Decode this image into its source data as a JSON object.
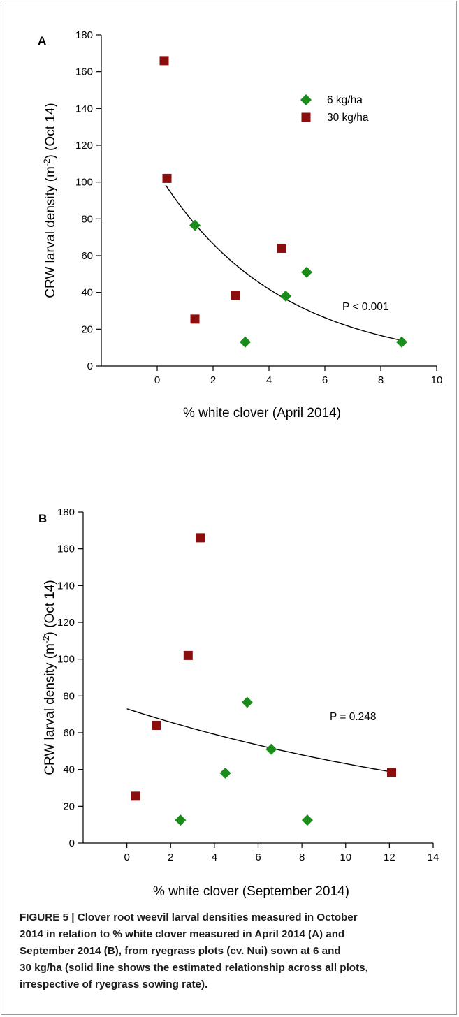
{
  "chart_data": [
    {
      "type": "scatter",
      "panel": "A",
      "xlabel": "% white clover (April 2014)",
      "ylabel_main": "CRW larval density (m",
      "ylabel_sup": "-2",
      "ylabel_end": ") (Oct 14)",
      "xlim": [
        -2,
        10
      ],
      "ylim": [
        0,
        180
      ],
      "xticks": [
        0,
        2,
        4,
        6,
        8,
        10
      ],
      "yticks": [
        0,
        20,
        40,
        60,
        80,
        100,
        120,
        140,
        160,
        180
      ],
      "legend_placement": "top-right",
      "annotation": "P < 0.001",
      "series": [
        {
          "name": "6 kg/ha",
          "marker": "diamond",
          "color": "#1a8c1a",
          "points": [
            [
              1.35,
              76.5
            ],
            [
              3.15,
              13
            ],
            [
              4.6,
              38
            ],
            [
              5.35,
              51
            ],
            [
              8.75,
              13
            ]
          ]
        },
        {
          "name": "30 kg/ha",
          "marker": "square",
          "color": "#8b0e0e",
          "points": [
            [
              0.25,
              166
            ],
            [
              0.35,
              102
            ],
            [
              1.35,
              25.5
            ],
            [
              2.8,
              38.5
            ],
            [
              4.45,
              64
            ]
          ]
        }
      ],
      "fit": {
        "type": "exponential decay",
        "x_range": [
          0.3,
          8.75
        ],
        "a": 105.5,
        "b": -0.2316
      }
    },
    {
      "type": "scatter",
      "panel": "B",
      "xlabel": "% white clover (September 2014)",
      "ylabel_main": "CRW larval density (m",
      "ylabel_sup": "-2",
      "ylabel_end": ") (Oct 14)",
      "xlim": [
        -2,
        14
      ],
      "ylim": [
        0,
        180
      ],
      "xticks": [
        0,
        2,
        4,
        6,
        8,
        10,
        12,
        14
      ],
      "yticks": [
        0,
        20,
        40,
        60,
        80,
        100,
        120,
        140,
        160,
        180
      ],
      "annotation": "P = 0.248",
      "series": [
        {
          "name": "6 kg/ha",
          "marker": "diamond",
          "color": "#1a8c1a",
          "points": [
            [
              2.45,
              12.5
            ],
            [
              4.5,
              38
            ],
            [
              5.5,
              76.5
            ],
            [
              6.6,
              51
            ],
            [
              8.25,
              12.5
            ]
          ]
        },
        {
          "name": "30 kg/ha",
          "marker": "square",
          "color": "#8b0e0e",
          "points": [
            [
              0.4,
              25.5
            ],
            [
              1.35,
              64
            ],
            [
              2.8,
              102
            ],
            [
              3.35,
              166
            ],
            [
              12.1,
              38.5
            ]
          ]
        }
      ],
      "fit": {
        "type": "exponential decay",
        "x_range": [
          0.0,
          12.1
        ],
        "a": 73,
        "b": -0.0525
      }
    }
  ],
  "caption": {
    "lines": [
      "FIGURE 5 | Clover root weevil larval densities measured in October",
      "2014 in relation to % white clover measured in April 2014 (A) and",
      "September 2014 (B), from ryegrass plots (cv. Nui) sown at 6 and",
      "30 kg/ha (solid line shows the estimated relationship across all plots,",
      "irrespective of ryegrass sowing rate)."
    ]
  }
}
